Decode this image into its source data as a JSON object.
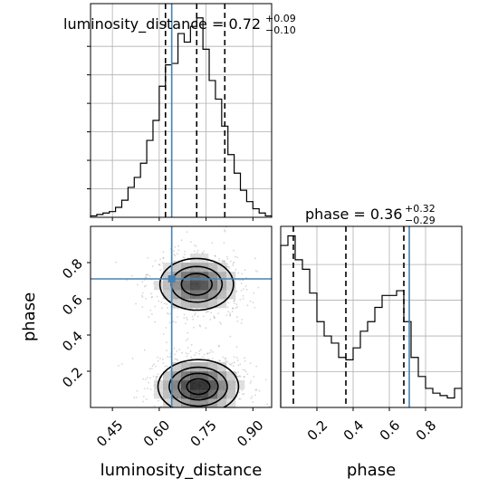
{
  "chart_data": {
    "type": "corner",
    "truth_color": "#4682b4",
    "truth": {
      "luminosity_distance": 0.64,
      "phase": 0.71
    },
    "panels": {
      "luminosity_distance_hist": {
        "title_main": "luminosity_distance = 0.72",
        "title_sup": "+0.09",
        "title_sub": "−0.10",
        "xlim": [
          0.38,
          0.96
        ],
        "bin_edges": [
          0.38,
          0.4,
          0.42,
          0.44,
          0.46,
          0.48,
          0.5,
          0.52,
          0.54,
          0.56,
          0.58,
          0.6,
          0.62,
          0.64,
          0.66,
          0.68,
          0.7,
          0.72,
          0.74,
          0.76,
          0.78,
          0.8,
          0.82,
          0.84,
          0.86,
          0.88,
          0.9,
          0.92,
          0.94,
          0.96
        ],
        "counts": [
          0.5,
          1.0,
          1.5,
          2.0,
          3.5,
          6.0,
          10.5,
          14.0,
          19.0,
          27.0,
          34.0,
          46.0,
          53.5,
          54.0,
          64.5,
          61.5,
          67.0,
          70.0,
          59.0,
          48.0,
          41.5,
          32.0,
          22.0,
          15.5,
          9.5,
          5.5,
          3.0,
          1.5,
          0.5
        ],
        "ylim": [
          0,
          75
        ],
        "quantiles": [
          0.62,
          0.72,
          0.81
        ],
        "x_tick_values": [
          0.45,
          0.6,
          0.75,
          0.9
        ],
        "y_tick_values": [
          10,
          20,
          30,
          40,
          50,
          60
        ]
      },
      "phase_hist": {
        "title_main": "phase = 0.36",
        "title_sup": "+0.32",
        "title_sub": "−0.29",
        "xlim": [
          0.0,
          1.0
        ],
        "bin_edges": [
          0.0,
          0.04,
          0.08,
          0.12,
          0.16,
          0.2,
          0.24,
          0.28,
          0.32,
          0.36,
          0.4,
          0.44,
          0.48,
          0.52,
          0.56,
          0.6,
          0.64,
          0.68,
          0.72,
          0.76,
          0.8,
          0.84,
          0.88,
          0.92,
          0.96,
          1.0
        ],
        "counts": [
          68,
          72,
          62,
          58,
          48,
          36,
          30,
          27,
          21,
          20,
          25,
          32,
          36,
          42,
          47,
          47,
          49,
          36,
          21,
          13,
          8,
          6,
          5,
          4,
          8
        ],
        "ylim": [
          0,
          76
        ],
        "quantiles": [
          0.07,
          0.36,
          0.68
        ],
        "x_tick_values": [
          0.2,
          0.4,
          0.6,
          0.8
        ],
        "x_tick_labels": [
          "0.2",
          "0.4",
          "0.6",
          "0.8"
        ]
      },
      "joint": {
        "xlim": [
          0.38,
          0.96
        ],
        "ylim": [
          0.0,
          1.0
        ],
        "x_tick_values": [
          0.45,
          0.6,
          0.75,
          0.9
        ],
        "x_tick_labels": [
          "0.45",
          "0.60",
          "0.75",
          "0.90"
        ],
        "y_tick_values": [
          0.2,
          0.4,
          0.6,
          0.8
        ],
        "y_tick_labels": [
          "0.2",
          "0.4",
          "0.6",
          "0.8"
        ],
        "modes": [
          {
            "cx": 0.725,
            "cy": 0.115,
            "sx": 0.065,
            "sy": 0.075,
            "weight": 1.0
          },
          {
            "cx": 0.72,
            "cy": 0.68,
            "sx": 0.062,
            "sy": 0.075,
            "weight": 0.85
          }
        ]
      }
    },
    "xlabels": {
      "luminosity_distance": "luminosity_distance",
      "phase": "phase"
    },
    "ylabels": {
      "phase": "phase"
    }
  }
}
